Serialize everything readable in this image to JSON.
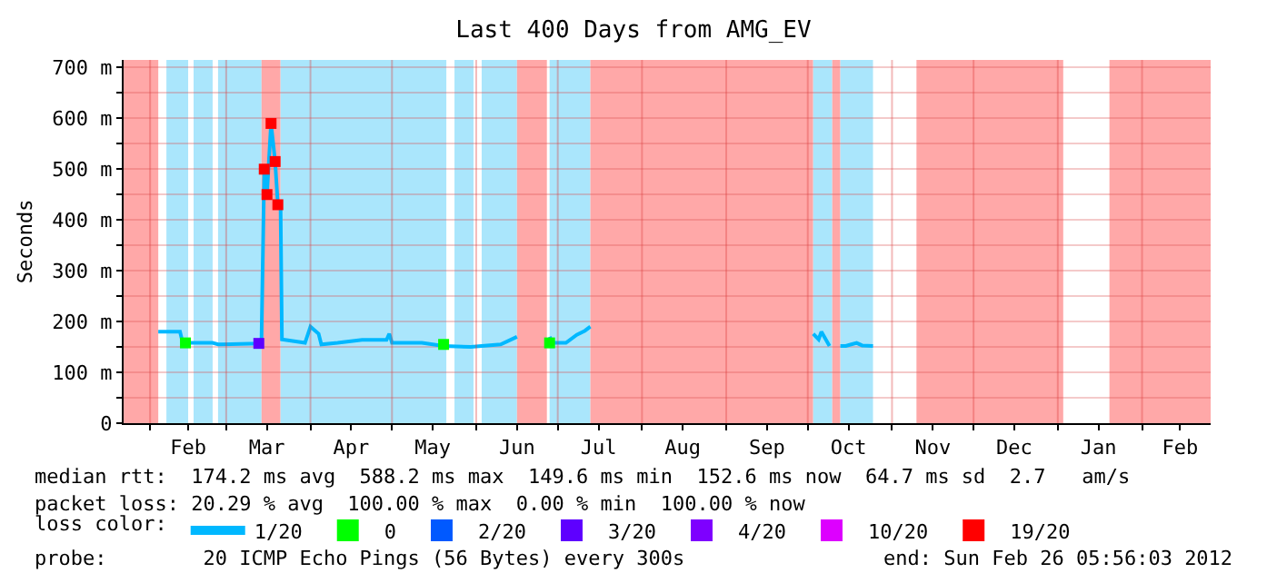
{
  "chart_data": {
    "type": "line",
    "title": "Last 400 Days from AMG_EV",
    "ylabel": "Seconds",
    "xlim": [
      "2011-01-22T05:56",
      "2012-02-26T05:56"
    ],
    "xticks": [
      {
        "value": "2011-02-01",
        "label": null
      },
      {
        "value": "2011-02-15",
        "label": "Feb"
      },
      {
        "value": "2011-03-01",
        "label": null
      },
      {
        "value": "2011-03-16",
        "label": "Mar"
      },
      {
        "value": "2011-04-01",
        "label": null
      },
      {
        "value": "2011-04-16",
        "label": "Apr"
      },
      {
        "value": "2011-05-01",
        "label": null
      },
      {
        "value": "2011-05-16",
        "label": "May"
      },
      {
        "value": "2011-06-01",
        "label": null
      },
      {
        "value": "2011-06-16",
        "label": "Jun"
      },
      {
        "value": "2011-07-01",
        "label": null
      },
      {
        "value": "2011-07-16",
        "label": "Jul"
      },
      {
        "value": "2011-08-01",
        "label": null
      },
      {
        "value": "2011-08-16",
        "label": "Aug"
      },
      {
        "value": "2011-09-01",
        "label": null
      },
      {
        "value": "2011-09-16",
        "label": "Sep"
      },
      {
        "value": "2011-10-01",
        "label": null
      },
      {
        "value": "2011-10-16",
        "label": "Oct"
      },
      {
        "value": "2011-11-01",
        "label": null
      },
      {
        "value": "2011-11-16",
        "label": "Nov"
      },
      {
        "value": "2011-12-01",
        "label": null
      },
      {
        "value": "2011-12-16",
        "label": "Dec"
      },
      {
        "value": "2012-01-01",
        "label": null
      },
      {
        "value": "2012-01-16",
        "label": "Jan"
      },
      {
        "value": "2012-02-01",
        "label": null
      },
      {
        "value": "2012-02-15",
        "label": "Feb"
      }
    ],
    "ylim": [
      0,
      715
    ],
    "yticks": [
      {
        "value": 0,
        "label": "0"
      },
      {
        "value": 50,
        "label": null
      },
      {
        "value": 100,
        "label": "100 m"
      },
      {
        "value": 150,
        "label": null
      },
      {
        "value": 200,
        "label": "200 m"
      },
      {
        "value": 250,
        "label": null
      },
      {
        "value": 300,
        "label": "300 m"
      },
      {
        "value": 350,
        "label": null
      },
      {
        "value": 400,
        "label": "400 m"
      },
      {
        "value": 450,
        "label": null
      },
      {
        "value": 500,
        "label": "500 m"
      },
      {
        "value": 550,
        "label": null
      },
      {
        "value": 600,
        "label": "600 m"
      },
      {
        "value": 650,
        "label": null
      },
      {
        "value": 700,
        "label": "700 m"
      }
    ],
    "grid": true,
    "legend": "bottom",
    "legend_title": "loss color:",
    "series": [
      {
        "name": "0",
        "type": "scatter",
        "marker": "square",
        "color": "#00ff00",
        "x": [
          "2011-02-14",
          "2011-05-20",
          "2011-06-28"
        ],
        "values": [
          158,
          155,
          158
        ]
      },
      {
        "name": "1/20",
        "color": "#00b8ff",
        "x": [
          "2011-02-04",
          "2011-02-12",
          "2011-02-13",
          "2011-02-24",
          "2011-02-26",
          "2011-03-13",
          "2011-03-14",
          "2011-03-15",
          "2011-03-16",
          "2011-03-17T12:00",
          "2011-03-19",
          "2011-03-20",
          "2011-03-21",
          "2011-03-21T12:00",
          "2011-03-30",
          "2011-04-01",
          "2011-04-04",
          "2011-04-05",
          "2011-04-11",
          "2011-04-20",
          "2011-04-29",
          "2011-04-30",
          "2011-05-01",
          "2011-05-12",
          "2011-05-20",
          "2011-05-30",
          "2011-06-03",
          "2011-06-10",
          "2011-06-16",
          "2011-06-20",
          "2011-06-28",
          "2011-06-29",
          "2011-07-04",
          "2011-07-08",
          "2011-07-11",
          "2011-07-13"
        ],
        "values": [
          180,
          180,
          158,
          158,
          155,
          157,
          167,
          500,
          450,
          590,
          515,
          430,
          430,
          165,
          158,
          190,
          176,
          155,
          158,
          164,
          164,
          176,
          158,
          158,
          152,
          150,
          152,
          155,
          170,
          null,
          170,
          158,
          158,
          174,
          182,
          190
        ]
      },
      {
        "color": "#00b8ff",
        "x": [
          "2011-10-03",
          "2011-10-05",
          "2011-10-06",
          "2011-10-09",
          "2011-10-11",
          "2011-10-13",
          "2011-10-15",
          "2011-10-17",
          "2011-10-19",
          "2011-10-21",
          "2011-10-25"
        ],
        "values": [
          176,
          165,
          180,
          152,
          null,
          152,
          152,
          155,
          158,
          153,
          152
        ]
      },
      {
        "name": "2/20",
        "type": "scatter",
        "marker": "square",
        "color": "#0059ff",
        "values": [
          null
        ]
      },
      {
        "name": "3/20",
        "type": "scatter",
        "marker": "square",
        "color": "#5e00ff",
        "x": [
          "2011-03-13"
        ],
        "values": [
          157
        ]
      },
      {
        "name": "4/20",
        "type": "scatter",
        "marker": "square",
        "color": "#7e00ff",
        "values": [
          null
        ]
      },
      {
        "name": "10/20",
        "type": "scatter",
        "marker": "square",
        "color": "#dd00ff",
        "values": [
          null
        ]
      },
      {
        "name": "19/20",
        "type": "scatter",
        "marker": "square",
        "color": "#ff0000",
        "x": [
          "2011-03-15",
          "2011-03-16",
          "2011-03-17T12:00",
          "2011-03-19",
          "2011-03-20"
        ],
        "values": [
          500,
          450,
          590,
          515,
          430
        ]
      }
    ],
    "bands": [
      {
        "axis": "x",
        "from": "2011-01-22T05:56",
        "to": "2011-02-04",
        "color": "#ffa8a8"
      },
      {
        "axis": "x",
        "from": "2011-02-07",
        "to": "2011-02-15",
        "color": "#aae6fc"
      },
      {
        "axis": "x",
        "from": "2011-02-17",
        "to": "2011-02-24",
        "color": "#aae6fc"
      },
      {
        "axis": "x",
        "from": "2011-02-26",
        "to": "2011-03-14",
        "color": "#aae6fc"
      },
      {
        "axis": "x",
        "from": "2011-03-14",
        "to": "2011-03-21",
        "color": "#ffa8a8"
      },
      {
        "axis": "x",
        "from": "2011-03-21",
        "to": "2011-05-21",
        "color": "#aae6fc"
      },
      {
        "axis": "x",
        "from": "2011-05-24",
        "to": "2011-05-31",
        "color": "#aae6fc"
      },
      {
        "axis": "x",
        "from": "2011-06-03",
        "to": "2011-06-16",
        "color": "#aae6fc"
      },
      {
        "axis": "x",
        "from": "2011-06-16",
        "to": "2011-06-27",
        "color": "#ffa8a8"
      },
      {
        "axis": "x",
        "from": "2011-06-28",
        "to": "2011-07-13",
        "color": "#aae6fc"
      },
      {
        "axis": "x",
        "from": "2011-07-13",
        "to": "2011-10-03",
        "color": "#ffa8a8"
      },
      {
        "axis": "x",
        "from": "2011-10-03",
        "to": "2011-10-10",
        "color": "#aae6fc"
      },
      {
        "axis": "x",
        "from": "2011-10-10",
        "to": "2011-10-13",
        "color": "#ffa8a8"
      },
      {
        "axis": "x",
        "from": "2011-10-13",
        "to": "2011-10-25",
        "color": "#aae6fc"
      },
      {
        "axis": "x",
        "from": "2011-11-10",
        "to": "2012-01-03",
        "color": "#ffa8a8"
      },
      {
        "axis": "x",
        "from": "2012-01-20",
        "to": "2012-02-26T05:56",
        "color": "#ffa8a8"
      }
    ],
    "annotations": [
      "median rtt:  174.2 ms avg  588.2 ms max  149.6 ms min  152.6 ms now  64.7 ms sd  2.7   am/s",
      "packet loss: 20.29 % avg  100.00 % max  0.00 % min  100.00 % now",
      "probe:        20 ICMP Echo Pings (56 Bytes) every 300s",
      "end: Sun Feb 26 05:56:03 2012"
    ]
  }
}
